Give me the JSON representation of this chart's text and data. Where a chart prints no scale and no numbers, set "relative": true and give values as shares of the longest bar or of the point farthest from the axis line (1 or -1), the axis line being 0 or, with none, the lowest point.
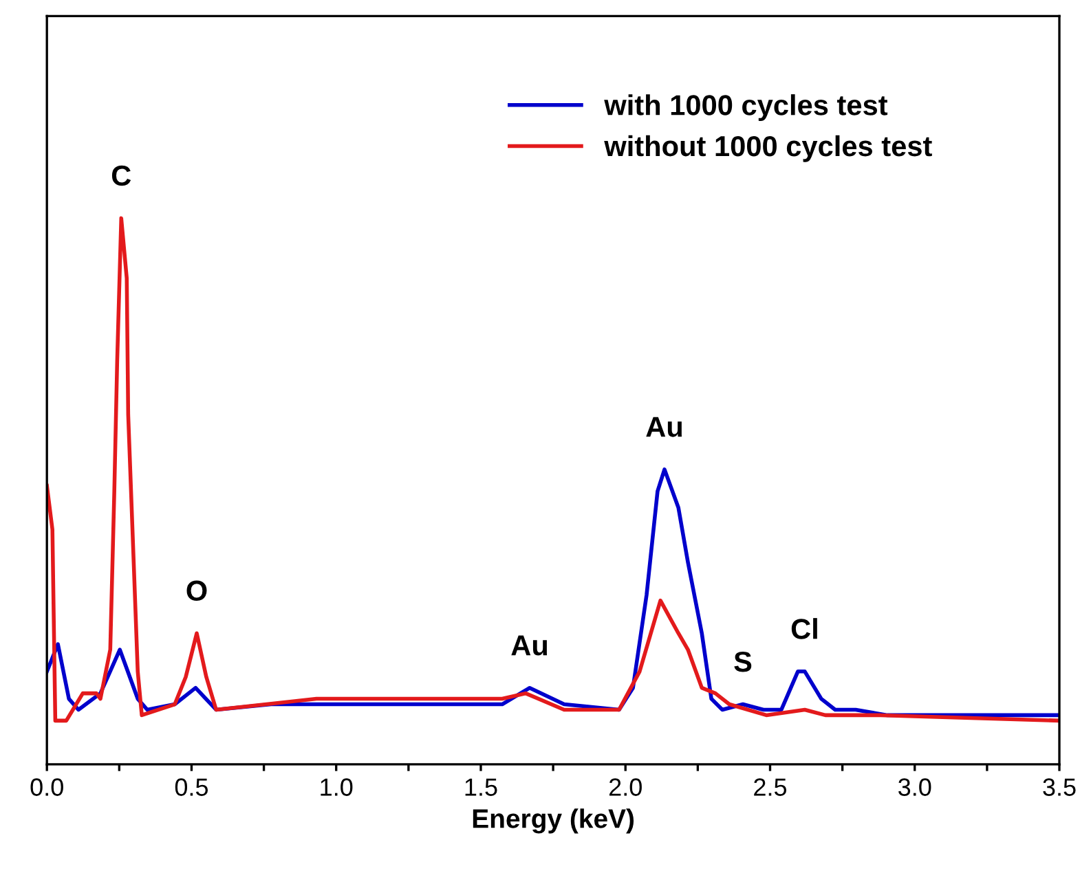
{
  "chart_data": {
    "type": "line",
    "relative": true,
    "xlabel": "Energy (keV)",
    "xlim": [
      0,
      3.5
    ],
    "xticks": [
      {
        "value": 0,
        "label": "0.0"
      },
      {
        "value": 0.25,
        "label": null
      },
      0.5,
      {
        "value": 0.75,
        "label": null
      },
      {
        "value": 1,
        "label": "1.0"
      },
      {
        "value": 1.25,
        "label": null
      },
      1.5,
      {
        "value": 1.75,
        "label": null
      },
      {
        "value": 2,
        "label": "2.0"
      },
      {
        "value": 2.25,
        "label": null
      },
      2.5,
      {
        "value": 2.75,
        "label": null
      },
      {
        "value": 3,
        "label": "3.0"
      },
      {
        "value": 3.25,
        "label": null
      },
      3.5
    ],
    "legend": "top right",
    "grid": false,
    "marker": "none",
    "line_style": "solid",
    "tick_labels": "x",
    "series": [
      {
        "name": "with 1000 cycles test",
        "color": "#0000cc",
        "x": [
          0,
          0.038,
          0.076,
          0.109,
          0.185,
          0.252,
          0.314,
          0.347,
          0.442,
          0.514,
          0.585,
          0.775,
          1.574,
          1.669,
          1.788,
          1.978,
          2.026,
          2.073,
          2.111,
          2.135,
          2.183,
          2.216,
          2.264,
          2.297,
          2.335,
          2.406,
          2.477,
          2.539,
          2.596,
          2.62,
          2.677,
          2.725,
          2.796,
          2.905,
          3.5
        ],
        "values": [
          0.17,
          0.22,
          0.12,
          0.1,
          0.13,
          0.21,
          0.12,
          0.1,
          0.11,
          0.14,
          0.1,
          0.11,
          0.11,
          0.14,
          0.11,
          0.1,
          0.14,
          0.31,
          0.5,
          0.54,
          0.47,
          0.37,
          0.24,
          0.12,
          0.1,
          0.11,
          0.1,
          0.1,
          0.17,
          0.17,
          0.12,
          0.1,
          0.1,
          0.09,
          0.09
        ]
      },
      {
        "name": "without 1000 cycles test",
        "color": "#e31a1c",
        "x": [
          0,
          0.019,
          0.029,
          0.067,
          0.124,
          0.171,
          0.185,
          0.219,
          0.233,
          0.243,
          0.257,
          0.276,
          0.281,
          0.3,
          0.314,
          0.328,
          0.442,
          0.48,
          0.518,
          0.551,
          0.585,
          0.932,
          1.574,
          1.655,
          1.788,
          1.978,
          2.049,
          2.121,
          2.183,
          2.216,
          2.264,
          2.311,
          2.359,
          2.487,
          2.62,
          2.691,
          2.882,
          3.5
        ],
        "values": [
          0.51,
          0.43,
          0.08,
          0.08,
          0.13,
          0.13,
          0.12,
          0.21,
          0.5,
          0.74,
          1.0,
          0.89,
          0.64,
          0.37,
          0.17,
          0.09,
          0.11,
          0.16,
          0.24,
          0.16,
          0.1,
          0.12,
          0.12,
          0.13,
          0.1,
          0.1,
          0.17,
          0.3,
          0.24,
          0.21,
          0.14,
          0.13,
          0.11,
          0.09,
          0.1,
          0.09,
          0.09,
          0.08
        ]
      }
    ],
    "annotations": [
      {
        "text": "C",
        "x": 0.257,
        "y": 1.0
      },
      {
        "text": "O",
        "x": 0.518,
        "y": 0.24
      },
      {
        "text": "Au",
        "x": 1.669,
        "y": 0.14
      },
      {
        "text": "Au",
        "x": 2.135,
        "y": 0.54
      },
      {
        "text": "S",
        "x": 2.406,
        "y": 0.11
      },
      {
        "text": "Cl",
        "x": 2.62,
        "y": 0.17
      }
    ]
  }
}
